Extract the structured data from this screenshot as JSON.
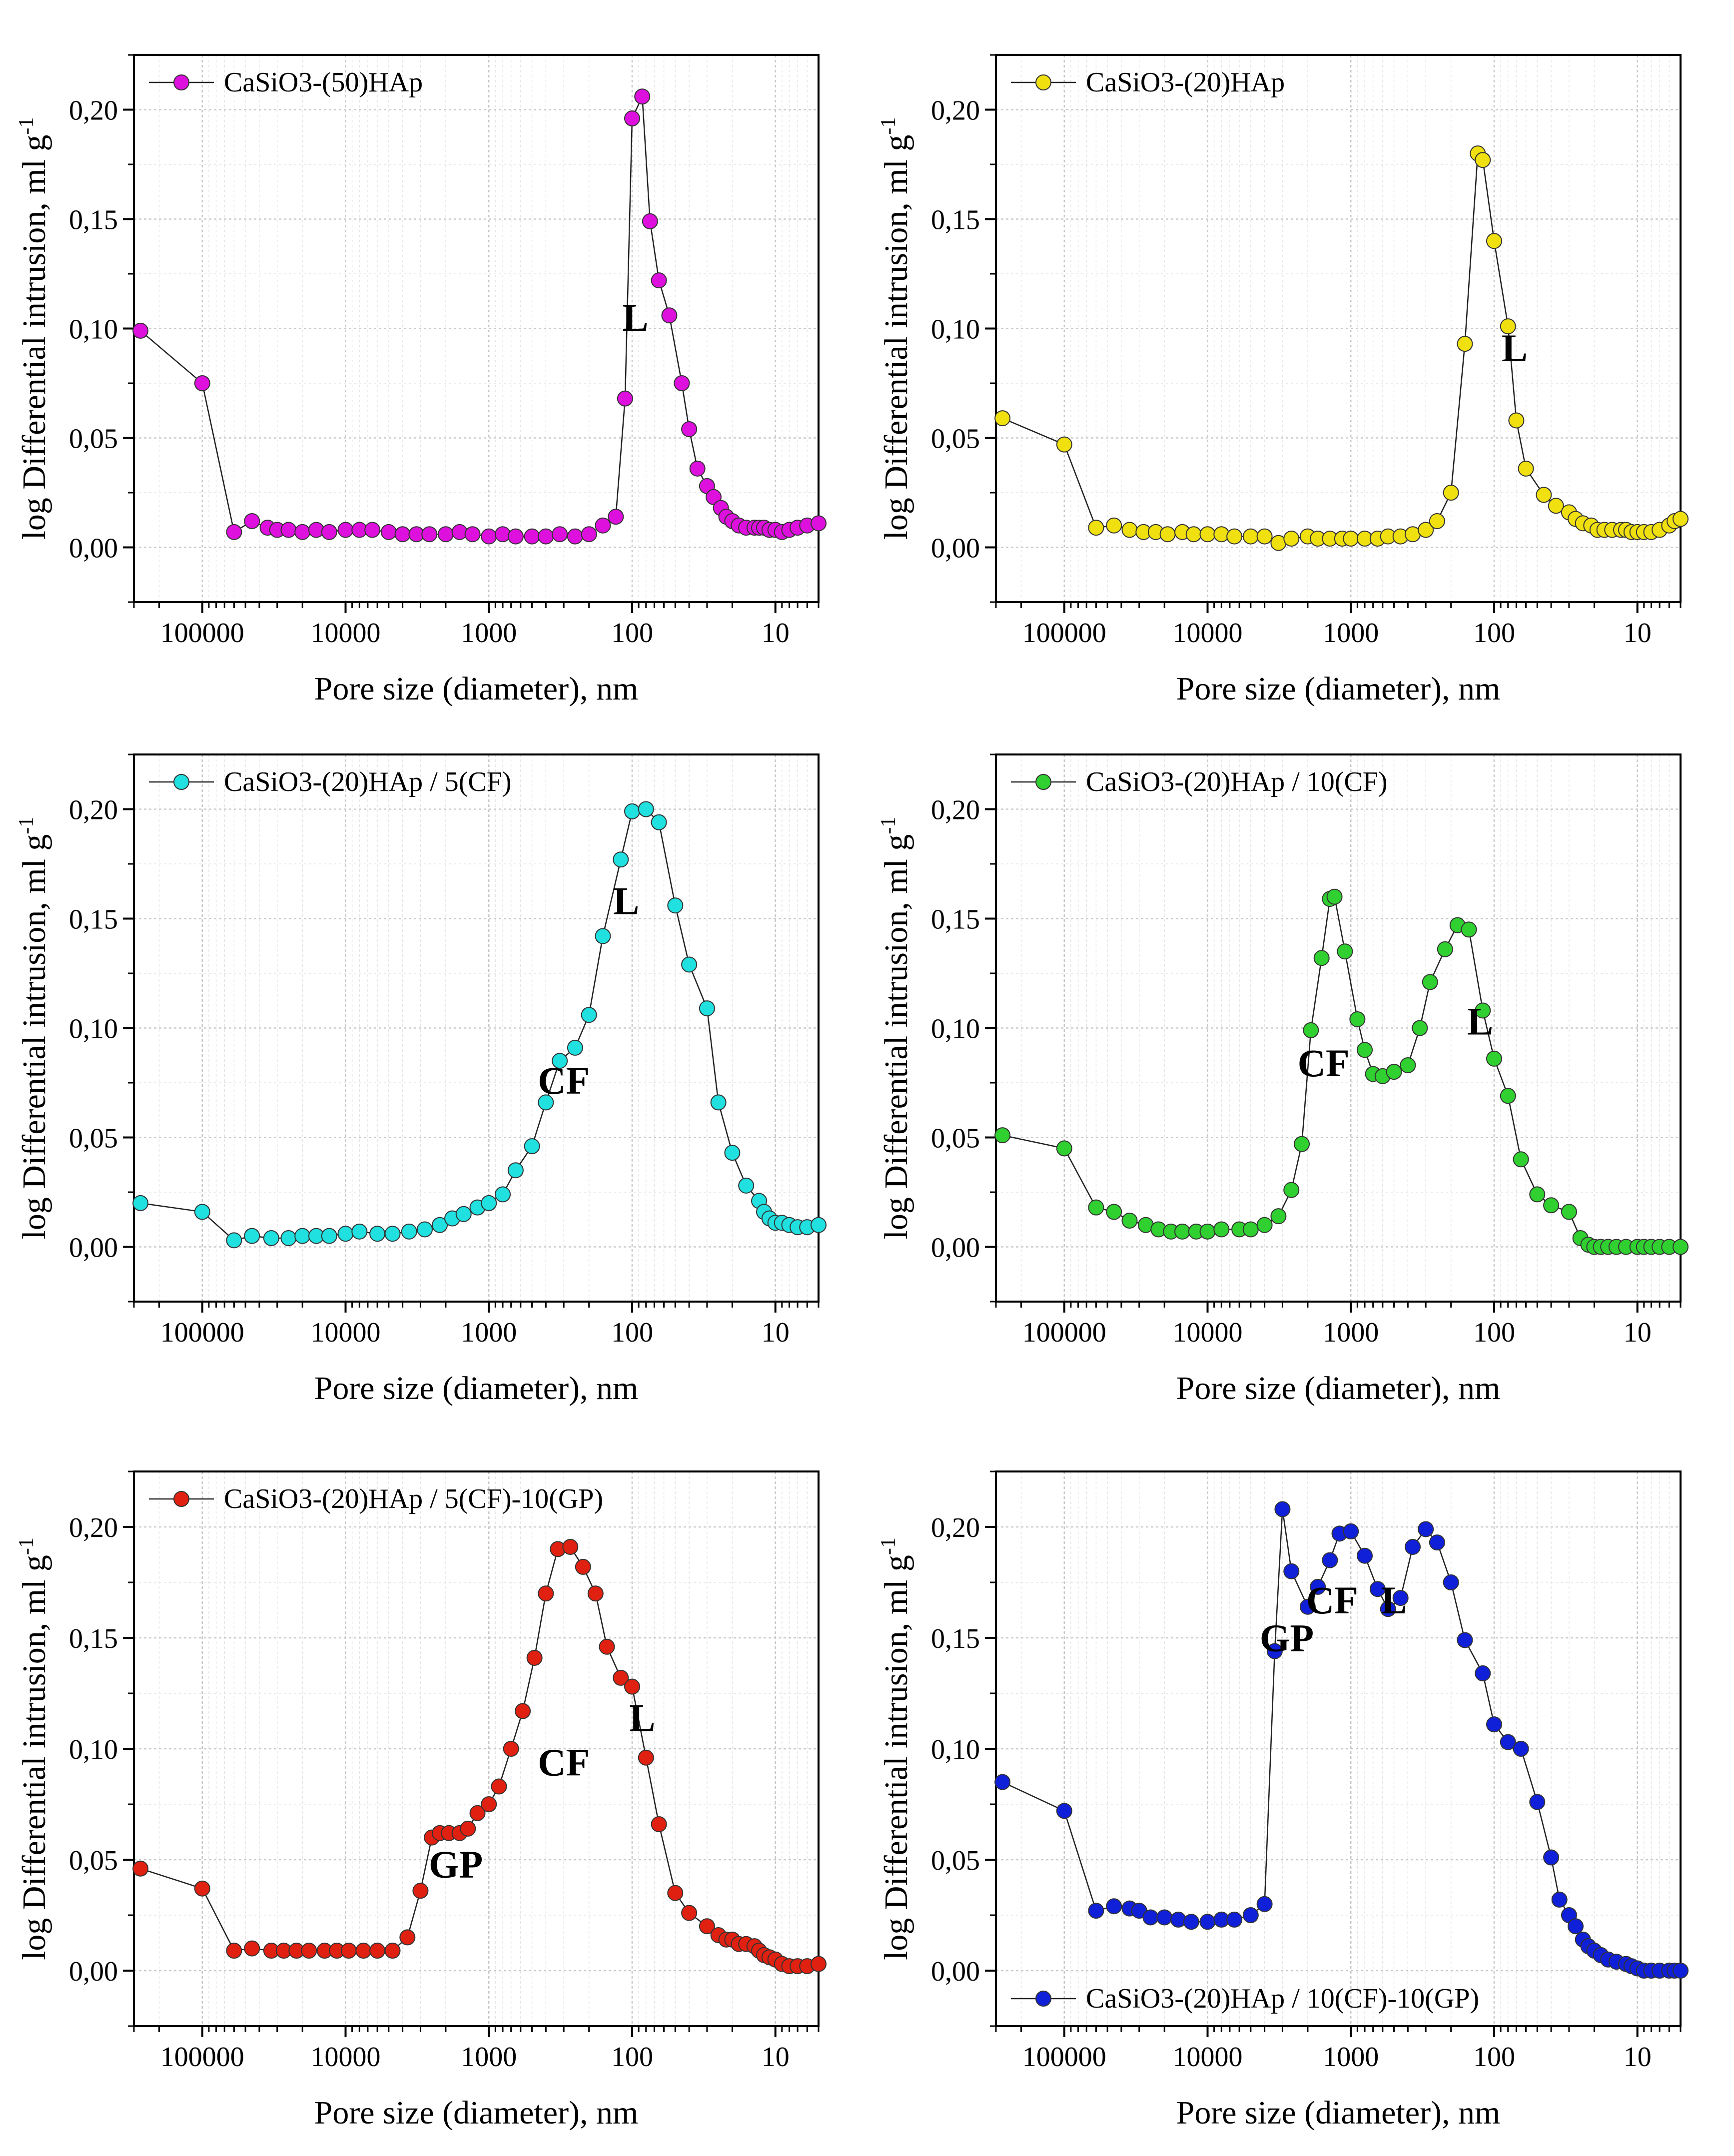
{
  "chart_data": [
    {
      "type": "line",
      "xscale": "log",
      "xreversed": true,
      "xlim": [
        300000,
        5
      ],
      "ylim": [
        -0.025,
        0.225
      ],
      "xticks": [
        100000,
        10000,
        1000,
        100,
        10
      ],
      "xtick_labels": [
        "100000",
        "10000",
        "1000",
        "100",
        "10"
      ],
      "yticks": [
        0,
        0.05,
        0.1,
        0.15,
        0.2
      ],
      "ytick_labels": [
        "0,00",
        "0,05",
        "0,10",
        "0,15",
        "0,20"
      ],
      "xlabel": "Pore size (diameter), nm",
      "ylabel": "log Differential intrusion, ml g",
      "ylabel_sup": "-1",
      "grid": true,
      "legend_position": "top-left",
      "series": [
        {
          "name": "CaSiO3-(50)HAp",
          "color": "#dd10dd",
          "x": [
            270000,
            100000,
            60000,
            45000,
            35000,
            30000,
            25000,
            20000,
            16000,
            13000,
            10000,
            8000,
            6500,
            5000,
            4000,
            3200,
            2600,
            2000,
            1600,
            1300,
            1000,
            800,
            650,
            500,
            400,
            320,
            250,
            200,
            160,
            130,
            112,
            100,
            85,
            75,
            65,
            55,
            45,
            40,
            35,
            30,
            27,
            24,
            22,
            20,
            18,
            16,
            14,
            13,
            12,
            11,
            10,
            9,
            8,
            7,
            6,
            5
          ],
          "y": [
            0.099,
            0.075,
            0.007,
            0.012,
            0.009,
            0.008,
            0.008,
            0.007,
            0.008,
            0.007,
            0.008,
            0.008,
            0.008,
            0.007,
            0.006,
            0.006,
            0.006,
            0.006,
            0.007,
            0.006,
            0.005,
            0.006,
            0.005,
            0.005,
            0.005,
            0.006,
            0.005,
            0.006,
            0.01,
            0.014,
            0.068,
            0.196,
            0.206,
            0.149,
            0.122,
            0.106,
            0.075,
            0.054,
            0.036,
            0.028,
            0.023,
            0.018,
            0.014,
            0.012,
            0.01,
            0.009,
            0.009,
            0.009,
            0.009,
            0.008,
            0.008,
            0.007,
            0.008,
            0.009,
            0.01,
            0.011
          ]
        }
      ],
      "annotations": [
        {
          "text": "L",
          "x": 95,
          "y": 0.099
        }
      ]
    },
    {
      "type": "line",
      "xscale": "log",
      "xreversed": true,
      "xlim": [
        300000,
        5
      ],
      "ylim": [
        -0.025,
        0.225
      ],
      "xticks": [
        100000,
        10000,
        1000,
        100,
        10
      ],
      "xtick_labels": [
        "100000",
        "10000",
        "1000",
        "100",
        "10"
      ],
      "yticks": [
        0,
        0.05,
        0.1,
        0.15,
        0.2
      ],
      "ytick_labels": [
        "0,00",
        "0,05",
        "0,10",
        "0,15",
        "0,20"
      ],
      "xlabel": "Pore size (diameter), nm",
      "ylabel": "log Differential intrusion, ml g",
      "ylabel_sup": "-1",
      "grid": true,
      "legend_position": "top-left",
      "series": [
        {
          "name": "CaSiO3-(20)HAp",
          "color": "#f0e010",
          "x": [
            270000,
            100000,
            60000,
            45000,
            35000,
            28000,
            23000,
            19000,
            15000,
            12500,
            10000,
            8000,
            6500,
            5000,
            4000,
            3200,
            2600,
            2000,
            1700,
            1400,
            1150,
            1000,
            800,
            650,
            550,
            450,
            370,
            300,
            250,
            200,
            160,
            130,
            120,
            100,
            80,
            70,
            60,
            45,
            37,
            30,
            27,
            24,
            21,
            19,
            17,
            15,
            13,
            12,
            11,
            10,
            9,
            8,
            7,
            6,
            5.5,
            5
          ],
          "y": [
            0.059,
            0.047,
            0.009,
            0.01,
            0.008,
            0.007,
            0.007,
            0.006,
            0.007,
            0.006,
            0.006,
            0.006,
            0.005,
            0.005,
            0.005,
            0.002,
            0.004,
            0.005,
            0.004,
            0.004,
            0.004,
            0.004,
            0.004,
            0.004,
            0.005,
            0.005,
            0.006,
            0.008,
            0.012,
            0.025,
            0.093,
            0.18,
            0.177,
            0.14,
            0.101,
            0.058,
            0.036,
            0.024,
            0.019,
            0.016,
            0.013,
            0.011,
            0.01,
            0.008,
            0.008,
            0.008,
            0.008,
            0.008,
            0.007,
            0.007,
            0.007,
            0.007,
            0.008,
            0.01,
            0.012,
            0.013
          ]
        }
      ],
      "annotations": [
        {
          "text": "L",
          "x": 72,
          "y": 0.085
        }
      ]
    },
    {
      "type": "line",
      "xscale": "log",
      "xreversed": true,
      "xlim": [
        300000,
        5
      ],
      "ylim": [
        -0.025,
        0.225
      ],
      "xticks": [
        100000,
        10000,
        1000,
        100,
        10
      ],
      "xtick_labels": [
        "100000",
        "10000",
        "1000",
        "100",
        "10"
      ],
      "yticks": [
        0,
        0.05,
        0.1,
        0.15,
        0.2
      ],
      "ytick_labels": [
        "0,00",
        "0,05",
        "0,10",
        "0,15",
        "0,20"
      ],
      "xlabel": "Pore size (diameter), nm",
      "ylabel": "log Differential intrusion, ml g",
      "ylabel_sup": "-1",
      "grid": true,
      "legend_position": "top-left",
      "series": [
        {
          "name": "CaSiO3-(20)HAp / 5(CF)",
          "color": "#20e0e0",
          "x": [
            270000,
            100000,
            60000,
            45000,
            33000,
            25000,
            20000,
            16000,
            13000,
            10000,
            8000,
            6000,
            4700,
            3600,
            2800,
            2200,
            1800,
            1500,
            1200,
            1000,
            800,
            650,
            500,
            400,
            320,
            250,
            200,
            160,
            120,
            100,
            80,
            65,
            50,
            40,
            30,
            25,
            20,
            16,
            13,
            12,
            11,
            10,
            9,
            8,
            7,
            6,
            5
          ],
          "y": [
            0.02,
            0.016,
            0.003,
            0.005,
            0.004,
            0.004,
            0.005,
            0.005,
            0.005,
            0.006,
            0.007,
            0.006,
            0.006,
            0.007,
            0.008,
            0.01,
            0.013,
            0.015,
            0.018,
            0.02,
            0.024,
            0.035,
            0.046,
            0.066,
            0.085,
            0.091,
            0.106,
            0.142,
            0.177,
            0.199,
            0.2,
            0.194,
            0.156,
            0.129,
            0.109,
            0.066,
            0.043,
            0.028,
            0.021,
            0.016,
            0.013,
            0.011,
            0.011,
            0.01,
            0.009,
            0.009,
            0.01
          ]
        }
      ],
      "annotations": [
        {
          "text": "L",
          "x": 110,
          "y": 0.152
        },
        {
          "text": "CF",
          "x": 300,
          "y": 0.07
        }
      ]
    },
    {
      "type": "line",
      "xscale": "log",
      "xreversed": true,
      "xlim": [
        300000,
        5
      ],
      "ylim": [
        -0.025,
        0.225
      ],
      "xticks": [
        100000,
        10000,
        1000,
        100,
        10
      ],
      "xtick_labels": [
        "100000",
        "10000",
        "1000",
        "100",
        "10"
      ],
      "yticks": [
        0,
        0.05,
        0.1,
        0.15,
        0.2
      ],
      "ytick_labels": [
        "0,00",
        "0,05",
        "0,10",
        "0,15",
        "0,20"
      ],
      "xlabel": "Pore size (diameter), nm",
      "ylabel": "log Differential intrusion, ml g",
      "ylabel_sup": "-1",
      "grid": true,
      "legend_position": "top-left",
      "series": [
        {
          "name": "CaSiO3-(20)HAp / 10(CF)",
          "color": "#30d030",
          "x": [
            270000,
            100000,
            60000,
            45000,
            35000,
            27000,
            22000,
            18000,
            15000,
            12000,
            10000,
            8000,
            6000,
            5000,
            4000,
            3200,
            2600,
            2200,
            1900,
            1600,
            1400,
            1300,
            1100,
            900,
            800,
            700,
            600,
            500,
            400,
            330,
            280,
            220,
            180,
            150,
            120,
            100,
            80,
            65,
            50,
            40,
            30,
            25,
            22,
            20,
            18,
            16,
            14,
            12,
            10,
            9,
            8,
            7,
            6,
            5
          ],
          "y": [
            0.051,
            0.045,
            0.018,
            0.016,
            0.012,
            0.01,
            0.008,
            0.007,
            0.007,
            0.007,
            0.007,
            0.008,
            0.008,
            0.008,
            0.01,
            0.014,
            0.026,
            0.047,
            0.099,
            0.132,
            0.159,
            0.16,
            0.135,
            0.104,
            0.09,
            0.079,
            0.078,
            0.08,
            0.083,
            0.1,
            0.121,
            0.136,
            0.147,
            0.145,
            0.108,
            0.086,
            0.069,
            0.04,
            0.024,
            0.019,
            0.016,
            0.004,
            0.001,
            0.0,
            0.0,
            0.0,
            0.0,
            0.0,
            0.0,
            0.0,
            0.0,
            0.0,
            0.0,
            0.0
          ]
        }
      ],
      "annotations": [
        {
          "text": "CF",
          "x": 1550,
          "y": 0.078
        },
        {
          "text": "L",
          "x": 125,
          "y": 0.097
        }
      ]
    },
    {
      "type": "line",
      "xscale": "log",
      "xreversed": true,
      "xlim": [
        300000,
        5
      ],
      "ylim": [
        -0.025,
        0.225
      ],
      "xticks": [
        100000,
        10000,
        1000,
        100,
        10
      ],
      "xtick_labels": [
        "100000",
        "10000",
        "1000",
        "100",
        "10"
      ],
      "yticks": [
        0,
        0.05,
        0.1,
        0.15,
        0.2
      ],
      "ytick_labels": [
        "0,00",
        "0,05",
        "0,10",
        "0,15",
        "0,20"
      ],
      "xlabel": "Pore size (diameter), nm",
      "ylabel": "log Differential intrusion, ml g",
      "ylabel_sup": "-1",
      "grid": true,
      "legend_position": "top-left",
      "series": [
        {
          "name": "CaSiO3-(20)HAp / 5(CF)-10(GP)",
          "color": "#e02010",
          "x": [
            270000,
            100000,
            60000,
            45000,
            33000,
            27000,
            22000,
            18000,
            14000,
            11500,
            9500,
            7500,
            6000,
            4700,
            3700,
            3000,
            2500,
            2200,
            1900,
            1600,
            1400,
            1200,
            1000,
            850,
            700,
            580,
            480,
            400,
            330,
            270,
            220,
            180,
            150,
            120,
            100,
            80,
            65,
            50,
            40,
            30,
            25,
            22,
            20,
            18,
            16,
            14,
            13,
            12,
            11,
            10,
            9,
            8,
            7,
            6,
            5
          ],
          "y": [
            0.046,
            0.037,
            0.009,
            0.01,
            0.009,
            0.009,
            0.009,
            0.009,
            0.009,
            0.009,
            0.009,
            0.009,
            0.009,
            0.009,
            0.015,
            0.036,
            0.06,
            0.062,
            0.062,
            0.062,
            0.064,
            0.071,
            0.075,
            0.083,
            0.1,
            0.117,
            0.141,
            0.17,
            0.19,
            0.191,
            0.182,
            0.17,
            0.146,
            0.132,
            0.128,
            0.096,
            0.066,
            0.035,
            0.026,
            0.02,
            0.016,
            0.014,
            0.014,
            0.012,
            0.012,
            0.011,
            0.009,
            0.007,
            0.006,
            0.005,
            0.003,
            0.002,
            0.002,
            0.002,
            0.003
          ]
        }
      ],
      "annotations": [
        {
          "text": "GP",
          "x": 1700,
          "y": 0.042
        },
        {
          "text": "CF",
          "x": 300,
          "y": 0.088
        },
        {
          "text": "L",
          "x": 85,
          "y": 0.108
        }
      ]
    },
    {
      "type": "line",
      "xscale": "log",
      "xreversed": true,
      "xlim": [
        300000,
        5
      ],
      "ylim": [
        -0.025,
        0.225
      ],
      "xticks": [
        100000,
        10000,
        1000,
        100,
        10
      ],
      "xtick_labels": [
        "100000",
        "10000",
        "1000",
        "100",
        "10"
      ],
      "yticks": [
        0,
        0.05,
        0.1,
        0.15,
        0.2
      ],
      "ytick_labels": [
        "0,00",
        "0,05",
        "0,10",
        "0,15",
        "0,20"
      ],
      "xlabel": "Pore size (diameter), nm",
      "ylabel": "log Differential intrusion, ml g",
      "ylabel_sup": "-1",
      "grid": true,
      "legend_position": "bottom-left",
      "series": [
        {
          "name": "CaSiO3-(20)HAp / 10(CF)-10(GP)",
          "color": "#1020d8",
          "x": [
            270000,
            100000,
            60000,
            45000,
            35000,
            30000,
            25000,
            20000,
            16000,
            13000,
            10000,
            8000,
            6500,
            5000,
            4000,
            3400,
            3000,
            2600,
            2000,
            1700,
            1400,
            1200,
            1000,
            800,
            650,
            550,
            450,
            370,
            300,
            250,
            200,
            160,
            120,
            100,
            80,
            65,
            50,
            40,
            35,
            30,
            27,
            24,
            22,
            20,
            18,
            16,
            14,
            12,
            11,
            10,
            9,
            8,
            7,
            6,
            5.5,
            5
          ],
          "y": [
            0.085,
            0.072,
            0.027,
            0.029,
            0.028,
            0.027,
            0.024,
            0.024,
            0.023,
            0.022,
            0.022,
            0.023,
            0.023,
            0.025,
            0.03,
            0.144,
            0.208,
            0.18,
            0.164,
            0.173,
            0.185,
            0.197,
            0.198,
            0.187,
            0.172,
            0.163,
            0.168,
            0.191,
            0.199,
            0.193,
            0.175,
            0.149,
            0.134,
            0.111,
            0.103,
            0.1,
            0.076,
            0.051,
            0.032,
            0.025,
            0.02,
            0.014,
            0.011,
            0.009,
            0.007,
            0.005,
            0.004,
            0.003,
            0.002,
            0.001,
            0.0,
            0.0,
            0.0,
            0.0,
            0.0,
            0.0
          ]
        }
      ],
      "annotations": [
        {
          "text": "GP",
          "x": 2800,
          "y": 0.144
        },
        {
          "text": "CF",
          "x": 1350,
          "y": 0.161
        },
        {
          "text": "L",
          "x": 500,
          "y": 0.161
        }
      ]
    }
  ]
}
